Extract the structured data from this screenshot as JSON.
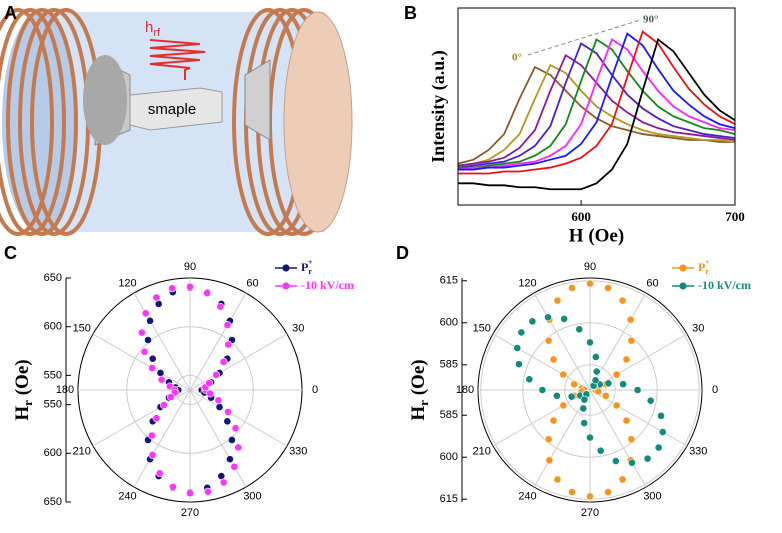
{
  "figure": {
    "panel_a": {
      "label": "A",
      "field": "h",
      "field_sub": "rf",
      "sample": "smaple"
    }
  },
  "chart_data": [
    {
      "type": "line",
      "label": "B",
      "xlabel": "H (Oe)",
      "ylabel": "Intensity (a.u.)",
      "x": [
        520,
        530,
        540,
        550,
        560,
        570,
        580,
        590,
        600,
        610,
        620,
        630,
        640,
        650,
        660,
        670,
        680,
        690,
        700
      ],
      "xlim": [
        520,
        700
      ],
      "xticks": [
        600,
        700
      ],
      "ylim": [
        0,
        100
      ],
      "annotations": [
        "0°",
        "90°"
      ],
      "series": [
        {
          "color": "#8b5a2b",
          "values": [
            21,
            23,
            28,
            36,
            54,
            70,
            66,
            58,
            50,
            44,
            40,
            38,
            36,
            35,
            34,
            33,
            33,
            32,
            32
          ]
        },
        {
          "color": "#b59a1a",
          "values": [
            20,
            21,
            23,
            28,
            36,
            54,
            71,
            67,
            58,
            50,
            45,
            41,
            38,
            36,
            35,
            34,
            33,
            33,
            32
          ]
        },
        {
          "color": "#8a1a9a",
          "values": [
            20,
            21,
            22,
            24,
            29,
            38,
            58,
            76,
            71,
            62,
            53,
            47,
            42,
            39,
            37,
            36,
            35,
            34,
            33
          ]
        },
        {
          "color": "#4b1fd0",
          "values": [
            19,
            20,
            21,
            22,
            25,
            30,
            40,
            62,
            82,
            77,
            66,
            56,
            49,
            44,
            40,
            38,
            36,
            35,
            34
          ]
        },
        {
          "color": "#138a13",
          "values": [
            19,
            19,
            20,
            21,
            22,
            25,
            30,
            41,
            63,
            84,
            79,
            68,
            58,
            50,
            45,
            42,
            39,
            38,
            36
          ]
        },
        {
          "color": "#ff22ff",
          "values": [
            18,
            19,
            19,
            20,
            21,
            22,
            25,
            30,
            41,
            63,
            84,
            79,
            68,
            58,
            50,
            45,
            42,
            39,
            38
          ]
        },
        {
          "color": "#1a1aff",
          "values": [
            18,
            18,
            19,
            19,
            20,
            21,
            23,
            25,
            31,
            42,
            65,
            87,
            81,
            69,
            58,
            51,
            45,
            41,
            39
          ]
        },
        {
          "color": "#ee1111",
          "values": [
            16,
            16,
            16,
            17,
            17,
            18,
            19,
            21,
            24,
            30,
            41,
            65,
            88,
            82,
            70,
            59,
            51,
            45,
            41
          ]
        },
        {
          "color": "#000000",
          "values": [
            11,
            11,
            10,
            10,
            9,
            9,
            8,
            8,
            8,
            11,
            18,
            31,
            58,
            84,
            78,
            67,
            56,
            48,
            43
          ]
        }
      ]
    },
    {
      "type": "polar",
      "label": "C",
      "ylabel": "H",
      "ylabel_sub": "r",
      "ylabel_unit": " (Oe)",
      "x": [
        0,
        10,
        20,
        30,
        40,
        50,
        60,
        70,
        80,
        90,
        100,
        110,
        120,
        130,
        140,
        150,
        160,
        170,
        180,
        190,
        200,
        210,
        220,
        230,
        240,
        250,
        260,
        270,
        280,
        290,
        300,
        310,
        320,
        330,
        340,
        350
      ],
      "xticks": [
        0,
        30,
        60,
        90,
        120,
        150,
        180,
        210,
        240,
        270,
        300,
        330
      ],
      "ylim": [
        535,
        650
      ],
      "yticks": [
        550,
        600,
        650
      ],
      "legend": "upper right",
      "series": [
        {
          "name": "P",
          "name_sub": "r",
          "name_sup": "+",
          "color": "#14147a",
          "values": [
            547,
            550,
            558,
            570,
            585,
            602,
            617,
            629,
            637,
            640,
            637,
            629,
            617,
            602,
            585,
            570,
            558,
            550,
            547,
            550,
            558,
            570,
            585,
            602,
            617,
            629,
            637,
            640,
            637,
            629,
            617,
            602,
            585,
            570,
            558,
            550
          ]
        },
        {
          "name": "-10 kV/cm",
          "color": "#ff33ff",
          "values": [
            551,
            551,
            556,
            566,
            580,
            596,
            612,
            626,
            636,
            641,
            641,
            636,
            626,
            612,
            596,
            580,
            566,
            556,
            551,
            551,
            556,
            566,
            580,
            596,
            612,
            626,
            636,
            641,
            641,
            636,
            626,
            612,
            596,
            580,
            566,
            556
          ]
        }
      ]
    },
    {
      "type": "polar",
      "label": "D",
      "ylabel": "H",
      "ylabel_sub": "r",
      "ylabel_unit": " (Oe)",
      "x": [
        0,
        10,
        20,
        30,
        40,
        50,
        60,
        70,
        80,
        90,
        100,
        110,
        120,
        130,
        140,
        150,
        160,
        170,
        180,
        190,
        200,
        210,
        220,
        230,
        240,
        250,
        260,
        270,
        280,
        290,
        300,
        310,
        320,
        330,
        340,
        350
      ],
      "xticks": [
        0,
        30,
        60,
        90,
        120,
        150,
        180,
        210,
        240,
        270,
        300,
        330
      ],
      "ylim": [
        576,
        616
      ],
      "yticks": [
        585,
        600,
        615
      ],
      "legend": "upper right",
      "series": [
        {
          "name": "P",
          "name_sub": "r",
          "name_sup": "+",
          "color": "#f7941d",
          "values": [
            578,
            579,
            582,
            587,
            593,
            599,
            605,
            610,
            613,
            614,
            613,
            610,
            605,
            599,
            593,
            587,
            582,
            579,
            578,
            579,
            582,
            587,
            593,
            599,
            605,
            610,
            613,
            614,
            613,
            610,
            605,
            599,
            593,
            587,
            582,
            579
          ]
        },
        {
          "name": "-10 kV/cm",
          "color": "#138a7e",
          "values": [
            593,
            588,
            583,
            580,
            578,
            578,
            580,
            583,
            588,
            593,
            598,
            603,
            606,
            608,
            608,
            606,
            603,
            598,
            593,
            588,
            583,
            580,
            578,
            578,
            580,
            583,
            588,
            593,
            598,
            603,
            606,
            608,
            608,
            606,
            603,
            598
          ]
        }
      ]
    }
  ]
}
